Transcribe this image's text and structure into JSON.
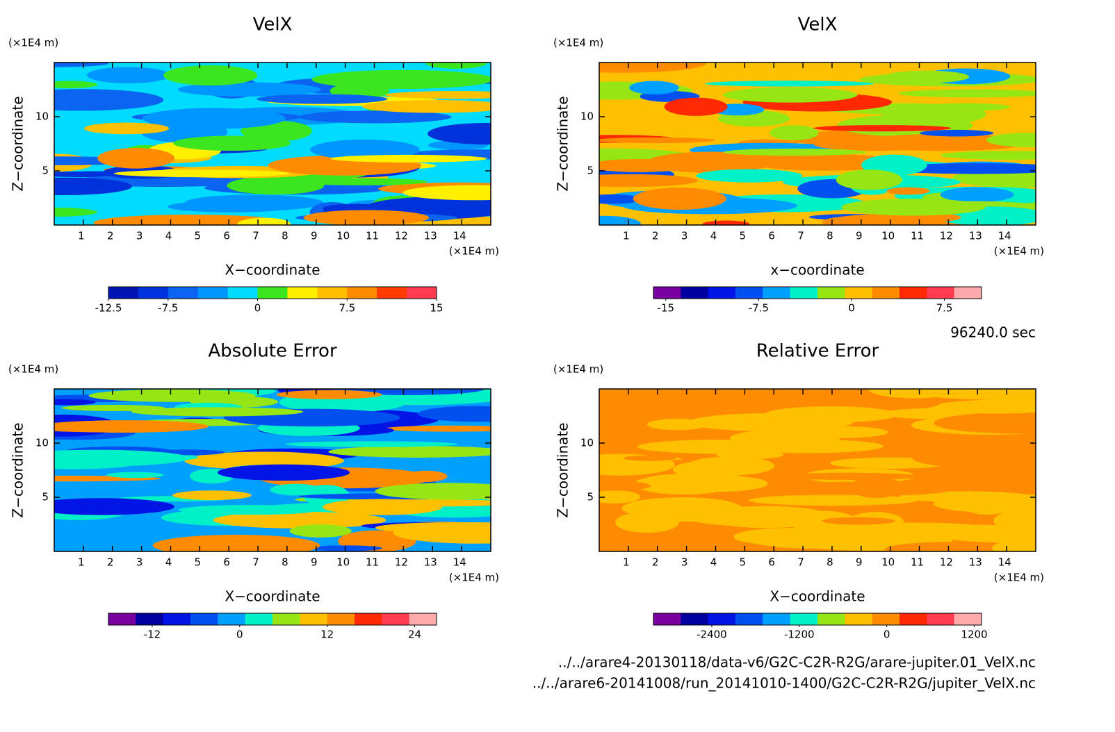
{
  "chart_data": [
    {
      "type": "contour",
      "title": "VelX",
      "xlabel": "X−coordinate",
      "ylabel": "Z−coordinate",
      "x_unit": "(×1E4 m)",
      "y_unit": "(×1E4 m)",
      "xlim": [
        0,
        15
      ],
      "xticks": [
        1,
        2,
        3,
        4,
        5,
        6,
        7,
        8,
        9,
        10,
        11,
        12,
        13,
        14
      ],
      "ylim": [
        0,
        15
      ],
      "yticks": [
        5,
        10
      ],
      "colorbar": {
        "lim": [
          -12.5,
          15
        ],
        "ticks": [
          -12.5,
          -7.5,
          0,
          7.5,
          15
        ],
        "colors": [
          "#0014b4",
          "#0032dc",
          "#0a64f0",
          "#0096ff",
          "#00dcff",
          "#3ce61e",
          "#fff000",
          "#ffc000",
          "#ff8c00",
          "#ff3c00",
          "#ff3c50"
        ]
      }
    },
    {
      "type": "contour",
      "title": "VelX",
      "xlabel": "x−coordinate",
      "ylabel": "Z−coordinate",
      "x_unit": "(×1E4 m)",
      "y_unit": "(×1E4 m)",
      "xlim": [
        0,
        15
      ],
      "xticks": [
        1,
        2,
        3,
        4,
        5,
        6,
        7,
        8,
        9,
        10,
        11,
        12,
        13,
        14
      ],
      "ylim": [
        0,
        15
      ],
      "yticks": [
        5,
        10
      ],
      "colorbar": {
        "lim": [
          -16,
          10.5
        ],
        "ticks": [
          -15,
          -7.5,
          0,
          7.5
        ],
        "colors": [
          "#7800a0",
          "#0000a0",
          "#0014e6",
          "#0050f0",
          "#00a0ff",
          "#00f0c8",
          "#96e614",
          "#ffc000",
          "#ff8c00",
          "#ff2800",
          "#ff3c50",
          "#ffaaaa"
        ]
      }
    },
    {
      "type": "contour",
      "title": "Absolute Error",
      "xlabel": "X−coordinate",
      "ylabel": "Z−coordinate",
      "x_unit": "(×1E4 m)",
      "y_unit": "(×1E4 m)",
      "xlim": [
        0,
        15
      ],
      "xticks": [
        1,
        2,
        3,
        4,
        5,
        6,
        7,
        8,
        9,
        10,
        11,
        12,
        13,
        14
      ],
      "ylim": [
        0,
        15
      ],
      "yticks": [
        5,
        10
      ],
      "colorbar": {
        "lim": [
          -18,
          27
        ],
        "ticks": [
          -12,
          0,
          12,
          24
        ],
        "colors": [
          "#7800a0",
          "#0000a0",
          "#0014e6",
          "#0050f0",
          "#00a0ff",
          "#00f0c8",
          "#96e614",
          "#ffc000",
          "#ff8c00",
          "#ff2800",
          "#ff3c50",
          "#ffaaaa"
        ]
      }
    },
    {
      "type": "contour",
      "title": "Relative Error",
      "xlabel": "X−coordinate",
      "ylabel": "Z−coordinate",
      "x_unit": "(×1E4 m)",
      "y_unit": "(×1E4 m)",
      "xlim": [
        0,
        15
      ],
      "xticks": [
        1,
        2,
        3,
        4,
        5,
        6,
        7,
        8,
        9,
        10,
        11,
        12,
        13,
        14
      ],
      "ylim": [
        0,
        15
      ],
      "yticks": [
        5,
        10
      ],
      "colorbar": {
        "lim": [
          -3200,
          1300
        ],
        "ticks": [
          -2400,
          -1200,
          0,
          1200
        ],
        "colors": [
          "#7800a0",
          "#0000a0",
          "#0014e6",
          "#0050f0",
          "#00a0ff",
          "#00f0c8",
          "#96e614",
          "#ffc000",
          "#ff8c00",
          "#ff2800",
          "#ff3c50",
          "#ffaaaa"
        ]
      }
    }
  ],
  "time_label": "96240.0 sec",
  "file_paths": [
    "../../arare4-20130118/data-v6/G2C-C2R-R2G/arare-jupiter.01_VelX.nc",
    "../../arare6-20141008/run_20141010-1400/G2C-C2R-R2G/jupiter_VelX.nc"
  ]
}
